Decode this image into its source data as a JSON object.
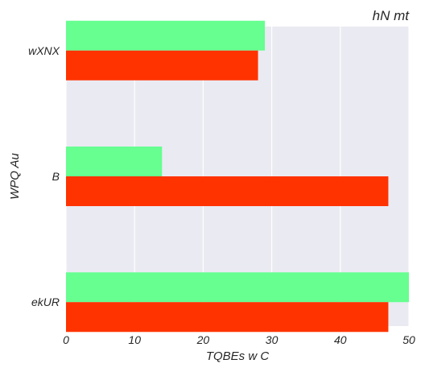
{
  "chart_data": {
    "type": "bar",
    "orientation": "horizontal",
    "title": "hN  mt",
    "xlabel": "TQBEs   w C",
    "ylabel": "WPQ  Au",
    "categories": [
      "wXNX",
      "B",
      "ekUR"
    ],
    "series": [
      {
        "color": "#66ff90",
        "values": [
          29,
          14,
          50
        ]
      },
      {
        "color": "#ff3300",
        "values": [
          28,
          47,
          47
        ]
      }
    ],
    "xlim": [
      0,
      50
    ],
    "xticks": [
      0,
      10,
      20,
      30,
      40,
      50
    ],
    "grid": true,
    "background": "#eaeaf2",
    "legend": "none"
  }
}
